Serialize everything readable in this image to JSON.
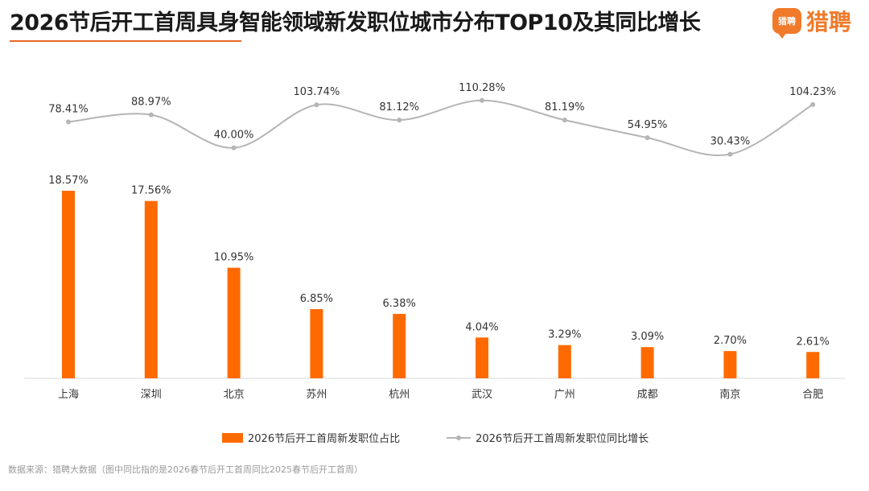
{
  "header": {
    "title": "2026节后开工首周具身智能领域新发职位城市分布TOP10及其同比增长",
    "brand_name": "猎聘",
    "brand_badge_text": "猎聘"
  },
  "footer": {
    "source": "数据来源：猎聘大数据（图中同比指的是2026春节后开工首周同比2025春节后开工首周）"
  },
  "colors": {
    "bar": "#ff6a00",
    "line": "#b5b5b5",
    "accent": "#f07a2a"
  },
  "chart_data": {
    "type": "bar",
    "categories": [
      "上海",
      "深圳",
      "北京",
      "苏州",
      "杭州",
      "武汉",
      "广州",
      "成都",
      "南京",
      "合肥"
    ],
    "series": [
      {
        "name": "2026节后开工首周新发职位占比",
        "type": "bar",
        "values": [
          18.57,
          17.56,
          10.95,
          6.85,
          6.38,
          4.04,
          3.29,
          3.09,
          2.7,
          2.61
        ],
        "labels": [
          "18.57%",
          "17.56%",
          "10.95%",
          "6.85%",
          "6.38%",
          "4.04%",
          "3.29%",
          "3.09%",
          "2.70%",
          "2.61%"
        ]
      },
      {
        "name": "2026节后开工首周新发职位同比增长",
        "type": "line",
        "values": [
          78.41,
          88.97,
          40.0,
          103.74,
          81.12,
          110.28,
          81.19,
          54.95,
          30.43,
          104.23
        ],
        "labels": [
          "78.41%",
          "88.97%",
          "40.00%",
          "103.74%",
          "81.12%",
          "110.28%",
          "81.19%",
          "54.95%",
          "30.43%",
          "104.23%"
        ]
      }
    ],
    "bar_ylim": [
      0,
      20
    ],
    "line_ylim": [
      30,
      110
    ],
    "legend_position": "bottom",
    "grid": false
  }
}
